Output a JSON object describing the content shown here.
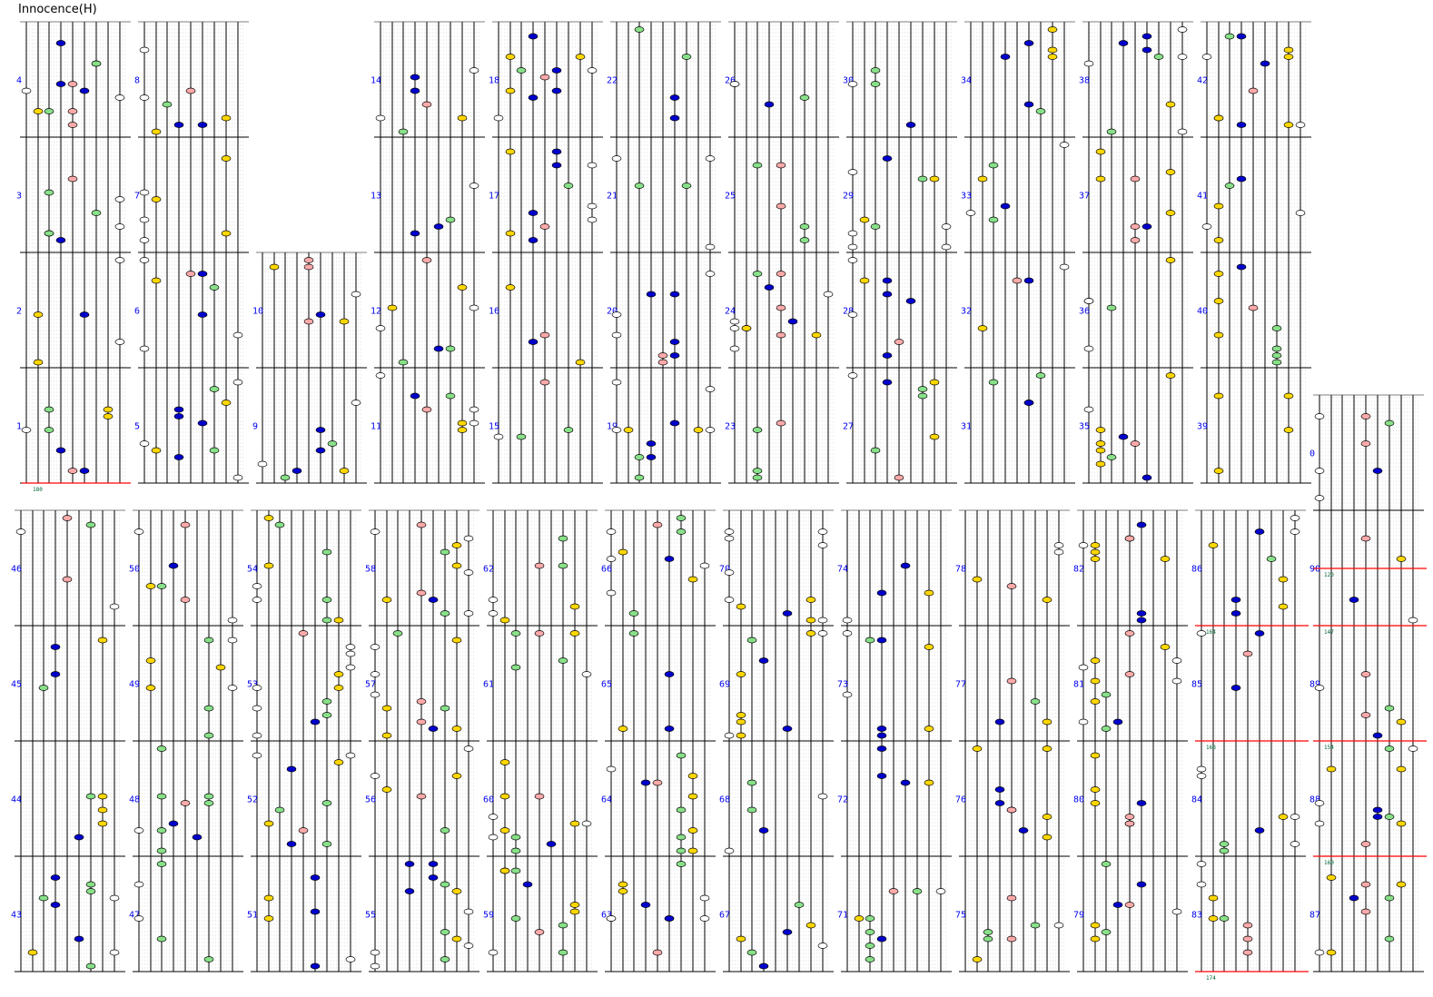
{
  "title": "Innocence(H)",
  "colors": {
    "lane": "#000000",
    "measure_line": "#000000",
    "grid": "#aaaaaa",
    "number": "#0000ee",
    "bpm_line": "#ff0000",
    "bpm_text": "#006633",
    "white": "#ffffff",
    "yellow": "#ffd700",
    "green": "#88e088",
    "blue": "#0000cc",
    "red": "#ffaaaa"
  },
  "bpm_labels": [
    "180",
    "164",
    "168",
    "174",
    "120",
    "147",
    "154",
    "160"
  ],
  "rows": [
    {
      "columns": [
        {
          "measures": [
            "1",
            "2",
            "3",
            "4"
          ]
        },
        {
          "measures": [
            "5",
            "6",
            "7",
            "8"
          ]
        },
        {
          "measures": [
            "9",
            "10"
          ]
        },
        {
          "measures": [
            "11",
            "12",
            "13",
            "14"
          ]
        },
        {
          "measures": [
            "15",
            "16",
            "17",
            "18"
          ]
        },
        {
          "measures": [
            "19",
            "20",
            "21",
            "22"
          ]
        },
        {
          "measures": [
            "23",
            "24",
            "25",
            "26"
          ]
        },
        {
          "measures": [
            "27",
            "28",
            "29",
            "30"
          ]
        },
        {
          "measures": [
            "31",
            "32",
            "33",
            "34"
          ]
        },
        {
          "measures": [
            "35",
            "36",
            "37",
            "38"
          ]
        },
        {
          "measures": [
            "39",
            "40",
            "41",
            "42"
          ]
        }
      ]
    },
    {
      "columns": [
        {
          "measures": [
            "43",
            "44",
            "45",
            "46"
          ]
        },
        {
          "measures": [
            "47",
            "48",
            "49",
            "50"
          ]
        },
        {
          "measures": [
            "51",
            "52",
            "53",
            "54"
          ]
        },
        {
          "measures": [
            "55",
            "56",
            "57",
            "58"
          ]
        },
        {
          "measures": [
            "59",
            "60",
            "61",
            "62"
          ]
        },
        {
          "measures": [
            "63",
            "64",
            "65",
            "66"
          ]
        },
        {
          "measures": [
            "67",
            "68",
            "69",
            "70"
          ]
        },
        {
          "measures": [
            "71",
            "72",
            "73",
            "74"
          ]
        },
        {
          "measures": [
            "75",
            "76",
            "77",
            "78"
          ]
        },
        {
          "measures": [
            "79",
            "80",
            "81",
            "82"
          ]
        },
        {
          "measures": [
            "83",
            "84",
            "85",
            "86"
          ]
        },
        {
          "measures": [
            "87",
            "88",
            "89",
            "90",
            "0"
          ]
        }
      ]
    }
  ]
}
